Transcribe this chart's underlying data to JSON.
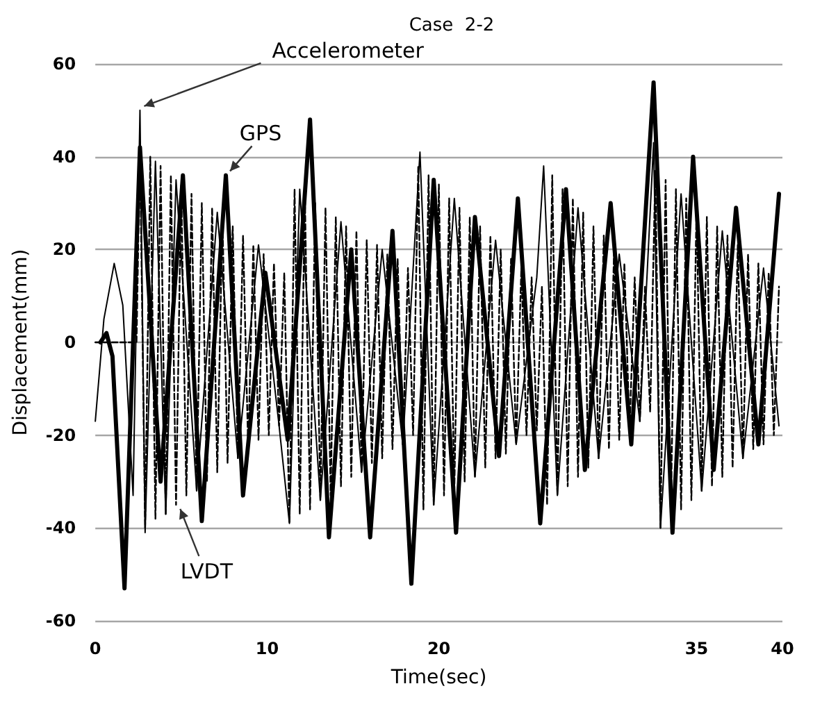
{
  "chart_data": {
    "type": "line",
    "title": "Case  2-2",
    "xlabel": "Time(sec)",
    "ylabel": "Displacement(mm)",
    "xlim": [
      0,
      40
    ],
    "xticks": [
      0,
      10,
      20,
      35,
      40
    ],
    "ylim": [
      -60,
      60
    ],
    "yticks": [
      -60,
      -40,
      -20,
      0,
      20,
      40,
      60
    ],
    "grid": "y",
    "marker": "none",
    "series": [
      {
        "name": "Accelerometer",
        "color": "#000000",
        "line_style": "solid",
        "x": [
          0,
          0.5,
          1.1,
          1.6,
          2.2,
          2.6,
          2.9,
          3.5,
          4.1,
          4.7,
          5.9,
          7.1,
          8.3,
          9.5,
          10.7,
          11.3,
          11.9,
          13.1,
          14.3,
          15.5,
          16.7,
          17.9,
          18.9,
          19.7,
          20.9,
          22.1,
          23.3,
          24.5,
          25.7,
          26.1,
          26.9,
          28.1,
          29.3,
          30.5,
          31.7,
          32.5,
          32.9,
          34.1,
          35.3,
          36.5,
          37.7,
          38.9,
          39.8
        ],
        "values": [
          -17,
          5,
          17,
          8,
          -33,
          50,
          -41,
          39,
          -37,
          35,
          -32,
          28,
          -25,
          21,
          -18,
          -39,
          33,
          -34,
          26,
          -28,
          20,
          -22,
          41,
          -35,
          31,
          -29,
          22,
          -22,
          14,
          38,
          -33,
          29,
          -25,
          19,
          -17,
          43,
          -40,
          32,
          -32,
          24,
          -25,
          16,
          -18
        ]
      },
      {
        "name": "GPS",
        "color": "#000000",
        "line_style": "solid",
        "x": [
          0.3,
          0.65,
          1.0,
          1.7,
          2.6,
          3.8,
          5.1,
          6.2,
          7.6,
          8.6,
          9.9,
          11.2,
          12.5,
          13.6,
          14.9,
          16.0,
          17.3,
          18.4,
          19.7,
          21.0,
          22.1,
          23.5,
          24.6,
          25.9,
          27.4,
          28.5,
          30.0,
          31.2,
          32.5,
          33.6,
          34.8,
          36.0,
          37.3,
          38.6,
          39.8
        ],
        "values": [
          0,
          2,
          -3,
          -53,
          42,
          -30,
          36,
          -38.5,
          36,
          -33,
          15,
          -21,
          48,
          -42,
          20,
          -42,
          24,
          -52,
          35,
          -41,
          27,
          -24.5,
          31,
          -39,
          33,
          -27.5,
          30,
          -22,
          56,
          -41,
          40,
          -27.5,
          29,
          -22,
          32
        ]
      },
      {
        "name": "LVDT",
        "color": "#000000",
        "line_style": "dashed",
        "x": [
          0,
          2.4,
          2.6,
          2.9,
          3.2,
          3.5,
          3.8,
          4.1,
          4.4,
          4.7,
          5.0,
          5.3,
          5.6,
          5.9,
          6.2,
          6.5,
          6.8,
          7.1,
          7.4,
          7.7,
          8.0,
          8.3,
          8.6,
          8.9,
          9.2,
          9.5,
          9.8,
          10.1,
          10.4,
          10.7,
          11.0,
          11.3,
          11.6,
          11.9,
          12.2,
          12.5,
          12.8,
          13.1,
          13.4,
          13.7,
          14.0,
          14.3,
          14.6,
          14.9,
          15.2,
          15.5,
          15.8,
          16.1,
          16.4,
          16.7,
          17.0,
          17.3,
          17.6,
          17.9,
          18.2,
          18.5,
          18.8,
          19.1,
          19.4,
          19.7,
          20.0,
          20.3,
          20.6,
          20.9,
          21.2,
          21.5,
          21.8,
          22.1,
          22.4,
          22.7,
          23.0,
          23.3,
          23.6,
          23.9,
          24.2,
          24.5,
          24.8,
          25.1,
          25.4,
          25.7,
          26.0,
          26.3,
          26.6,
          26.9,
          27.2,
          27.5,
          27.8,
          28.1,
          28.4,
          28.7,
          29.0,
          29.3,
          29.6,
          29.9,
          30.2,
          30.5,
          30.8,
          31.1,
          31.4,
          31.7,
          32.0,
          32.3,
          32.6,
          32.9,
          33.2,
          33.5,
          33.8,
          34.1,
          34.4,
          34.7,
          35.0,
          35.3,
          35.6,
          35.9,
          36.2,
          36.5,
          36.8,
          37.1,
          37.4,
          37.7,
          38.0,
          38.3,
          38.6,
          38.9,
          39.2,
          39.5,
          39.8
        ],
        "values": [
          0,
          0,
          42,
          -40,
          40,
          -38,
          38,
          -37,
          36,
          -35,
          34,
          -33,
          32,
          -32,
          30,
          -30,
          29,
          -28,
          27,
          -26,
          25,
          -25,
          23,
          -23,
          21,
          -21,
          19,
          -20,
          17,
          -18,
          15,
          -39,
          33,
          -37,
          32,
          -36,
          30,
          -34,
          29,
          -33,
          27,
          -31,
          25,
          -29,
          24,
          -28,
          22,
          -26,
          21,
          -25,
          19,
          -23,
          18,
          -22,
          16,
          -20,
          38,
          -36,
          36,
          -35,
          34,
          -33,
          31,
          -32,
          29,
          -30,
          27,
          -29,
          25,
          -27,
          23,
          -25,
          20,
          -24,
          18,
          -22,
          16,
          -20,
          14,
          -19,
          12,
          -35,
          36,
          -33,
          33,
          -31,
          31,
          -29,
          28,
          -27,
          25,
          -25,
          23,
          -23,
          20,
          -21,
          17,
          -19,
          14,
          -17,
          12,
          -15,
          37,
          -40,
          35,
          -38,
          33,
          -36,
          31,
          -34,
          29,
          -32,
          27,
          -31,
          25,
          -29,
          23,
          -27,
          21,
          -25,
          19,
          -23,
          17,
          -22,
          15,
          -20,
          12
        ]
      }
    ]
  }
}
